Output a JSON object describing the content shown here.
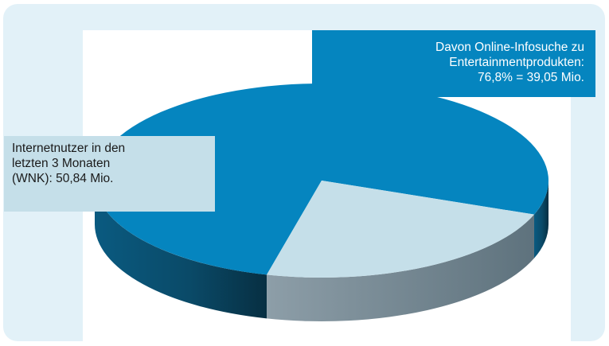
{
  "chart_data": {
    "type": "pie",
    "title": "",
    "slices": [
      {
        "label": "Davon Online-Infosuche zu Entertainmentprodukten",
        "value": 76.8,
        "absolute_mio": 39.05,
        "color": "#0585bf"
      },
      {
        "label": "Internetnutzer in den letzten 3 Monaten (WNK)",
        "value": 23.2,
        "color": "#c5dfe9"
      }
    ],
    "total_mio": 50.84,
    "three_d": true,
    "legend": "none",
    "grid": false
  },
  "labels": {
    "online": {
      "lines": [
        "Davon Online-Infosuche zu",
        "Entertainmentprodukten:",
        "76,8% = 39,05 Mio."
      ]
    },
    "internet": {
      "lines": [
        "Internetnutzer in den",
        "letzten 3 Monaten",
        "(WNK): 50,84 Mio."
      ]
    }
  },
  "colors": {
    "frame_bg": "#e2f1f8",
    "main_top": "#0585bf",
    "main_side": "#0a4863",
    "minor_top": "#c5dfe9",
    "minor_side": "#8a9ca6"
  }
}
